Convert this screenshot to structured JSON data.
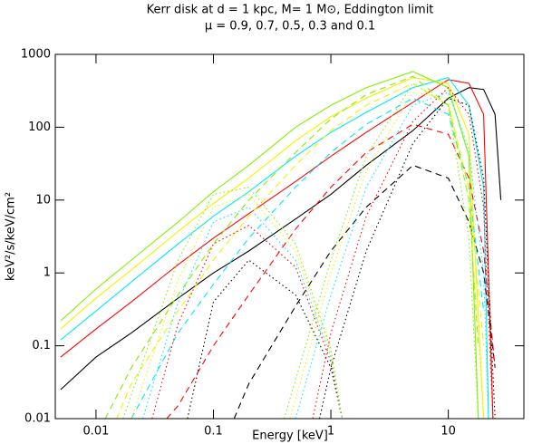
{
  "chart_data": {
    "type": "line",
    "title": "Kerr disk at d = 1 kpc, M= 1 M⊙, Eddington limit",
    "subtitle": "μ = 0.9, 0.7, 0.5, 0.3 and 0.1",
    "x_label": "Energy [keV]",
    "y_label": "keV²/s/keV/cm²",
    "xscale": "log",
    "yscale": "log",
    "xlim": [
      0.0045,
      44
    ],
    "ylim": [
      0.01,
      1000
    ],
    "xticks": [
      0.01,
      0.1,
      1,
      10
    ],
    "yticks": [
      0.01,
      0.1,
      1,
      10,
      100,
      1000
    ],
    "series": [
      {
        "color": "#000000",
        "style": "solid",
        "x": [
          0.005,
          0.01,
          0.02,
          0.05,
          0.1,
          0.2,
          0.5,
          1,
          2,
          5,
          10,
          15,
          20,
          25,
          28
        ],
        "values": [
          0.025,
          0.07,
          0.15,
          0.45,
          1,
          2,
          5.5,
          12,
          30,
          90,
          250,
          350,
          330,
          150,
          10
        ]
      },
      {
        "color": "#ff0000",
        "style": "solid",
        "x": [
          0.005,
          0.01,
          0.02,
          0.05,
          0.1,
          0.2,
          0.5,
          1,
          2,
          5,
          10,
          15,
          20,
          24
        ],
        "values": [
          0.07,
          0.17,
          0.4,
          1.3,
          3,
          6.5,
          18,
          40,
          85,
          220,
          450,
          400,
          150,
          0.01
        ]
      },
      {
        "color": "#00e8ff",
        "style": "solid",
        "x": [
          0.005,
          0.01,
          0.02,
          0.05,
          0.1,
          0.2,
          0.5,
          1,
          2,
          5,
          10,
          15,
          20,
          22
        ],
        "values": [
          0.12,
          0.3,
          0.75,
          2.5,
          6,
          13,
          40,
          85,
          160,
          350,
          480,
          200,
          15,
          0.01
        ]
      },
      {
        "color": "#f2f200",
        "style": "solid",
        "x": [
          0.005,
          0.01,
          0.02,
          0.05,
          0.1,
          0.2,
          0.5,
          1,
          2,
          5,
          10,
          15,
          20
        ],
        "values": [
          0.17,
          0.45,
          1.1,
          3.7,
          9,
          20,
          65,
          140,
          250,
          480,
          400,
          80,
          0.01
        ]
      },
      {
        "color": "#80f000",
        "style": "solid",
        "x": [
          0.005,
          0.01,
          0.02,
          0.05,
          0.1,
          0.2,
          0.5,
          1,
          2,
          5,
          10,
          15,
          18
        ],
        "values": [
          0.22,
          0.6,
          1.5,
          5,
          13,
          30,
          100,
          200,
          350,
          580,
          350,
          40,
          0.01
        ]
      },
      {
        "color": "#000000",
        "style": "dashed",
        "x": [
          0.15,
          0.2,
          0.5,
          1,
          2,
          5,
          10,
          15,
          20,
          25
        ],
        "values": [
          0.01,
          0.03,
          0.35,
          2,
          8,
          30,
          20,
          5,
          1,
          0.05
        ]
      },
      {
        "color": "#ff0000",
        "style": "dashed",
        "x": [
          0.04,
          0.05,
          0.1,
          0.2,
          0.5,
          1,
          2,
          5,
          10,
          15,
          20,
          25
        ],
        "values": [
          0.01,
          0.015,
          0.1,
          0.5,
          4,
          15,
          45,
          110,
          80,
          20,
          2,
          0.05
        ]
      },
      {
        "color": "#00e8ff",
        "style": "dashed",
        "x": [
          0.02,
          0.05,
          0.1,
          0.2,
          0.5,
          1,
          2,
          5,
          10,
          15,
          20
        ],
        "values": [
          0.01,
          0.15,
          0.7,
          3,
          15,
          45,
          110,
          250,
          150,
          15,
          0.3
        ]
      },
      {
        "color": "#f2f200",
        "style": "dashed",
        "x": [
          0.015,
          0.02,
          0.05,
          0.1,
          0.2,
          0.5,
          1,
          2,
          5,
          10,
          15,
          20
        ],
        "values": [
          0.01,
          0.03,
          0.3,
          1.5,
          6,
          30,
          90,
          200,
          400,
          200,
          15,
          0.1
        ]
      },
      {
        "color": "#80f000",
        "style": "dashed",
        "x": [
          0.012,
          0.02,
          0.05,
          0.1,
          0.2,
          0.5,
          1,
          2,
          5,
          10,
          15,
          18
        ],
        "values": [
          0.01,
          0.05,
          0.5,
          2.5,
          10,
          45,
          130,
          280,
          500,
          200,
          10,
          0.1
        ]
      },
      {
        "color": "#000000",
        "style": "dotted",
        "x": [
          0.06,
          0.1,
          0.2,
          0.5,
          1,
          1.25
        ],
        "values": [
          0.01,
          0.4,
          1.5,
          0.5,
          0.05,
          0.01
        ]
      },
      {
        "color": "#ff0000",
        "style": "dotted",
        "x": [
          0.03,
          0.05,
          0.1,
          0.2,
          0.5,
          1,
          1.25
        ],
        "values": [
          0.01,
          0.2,
          2.5,
          4.5,
          1.2,
          0.06,
          0.01
        ]
      },
      {
        "color": "#00e8ff",
        "style": "dotted",
        "x": [
          0.025,
          0.05,
          0.1,
          0.2,
          0.5,
          1,
          1.25
        ],
        "values": [
          0.01,
          0.4,
          5,
          8,
          1.5,
          0.07,
          0.01
        ]
      },
      {
        "color": "#f2f200",
        "style": "dotted",
        "x": [
          0.02,
          0.05,
          0.1,
          0.2,
          0.5,
          1,
          1.25
        ],
        "values": [
          0.01,
          0.8,
          8,
          12,
          2,
          0.08,
          0.01
        ]
      },
      {
        "color": "#80f000",
        "style": "dotted",
        "x": [
          0.017,
          0.05,
          0.1,
          0.2,
          0.5,
          1,
          1.25
        ],
        "values": [
          0.01,
          1.5,
          12,
          15,
          2.5,
          0.09,
          0.01
        ]
      },
      {
        "color": "#000000",
        "style": "dotted",
        "x": [
          0.8,
          1,
          2,
          5,
          10,
          15,
          20,
          25
        ],
        "values": [
          0.01,
          0.05,
          2,
          60,
          250,
          200,
          20,
          0.01
        ]
      },
      {
        "color": "#ff0000",
        "style": "dotted",
        "x": [
          0.7,
          1,
          2,
          5,
          10,
          15,
          20,
          24
        ],
        "values": [
          0.01,
          0.15,
          6,
          120,
          350,
          150,
          8,
          0.01
        ]
      },
      {
        "color": "#00e8ff",
        "style": "dotted",
        "x": [
          0.5,
          1,
          2,
          5,
          10,
          15,
          20,
          22
        ],
        "values": [
          0.01,
          0.5,
          15,
          200,
          300,
          50,
          1,
          0.01
        ]
      },
      {
        "color": "#f2f200",
        "style": "dotted",
        "x": [
          0.45,
          1,
          2,
          5,
          10,
          15,
          20
        ],
        "values": [
          0.01,
          1,
          25,
          300,
          250,
          10,
          0.01
        ]
      },
      {
        "color": "#80f000",
        "style": "dotted",
        "x": [
          0.4,
          1,
          2,
          5,
          10,
          15,
          18
        ],
        "values": [
          0.01,
          1.5,
          40,
          400,
          200,
          3,
          0.01
        ]
      }
    ]
  }
}
